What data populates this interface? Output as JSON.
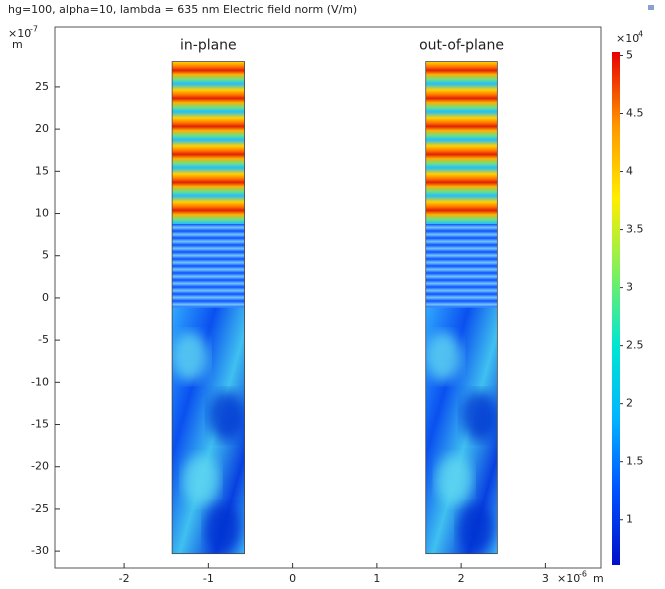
{
  "chart_data": {
    "type": "heatmap",
    "title": "hg=100, alpha=10, lambda = 635 nm Electric field norm (V/m)",
    "xlabel": "m",
    "xscale_base": "×10",
    "xscale_exp": "-6",
    "ylabel": "m",
    "yscale_base": "×10",
    "yscale_exp": "-7",
    "xlim": [
      -2.82,
      3.66
    ],
    "xticks": [
      -2,
      -1,
      0,
      1,
      2,
      3
    ],
    "ylim": [
      -32,
      32.1
    ],
    "yticks": [
      -30,
      -25,
      -20,
      -15,
      -10,
      -5,
      0,
      5,
      10,
      15,
      20,
      25
    ],
    "regions": [
      {
        "label": "in-plane",
        "x": [
          -1.43,
          -0.57
        ],
        "y": [
          -30.3,
          28
        ]
      },
      {
        "label": "out-of-plane",
        "x": [
          1.58,
          2.43
        ],
        "y": [
          -30.3,
          28
        ]
      }
    ],
    "colorbar": {
      "scale_base": "×10",
      "scale_exp": "4",
      "lim": [
        0.61,
        5.03
      ],
      "ticks": [
        1,
        1.5,
        2,
        2.5,
        3,
        3.5,
        4,
        4.5,
        5
      ],
      "colormap": [
        "#0010c8",
        "#0050ff",
        "#00b4ff",
        "#00e6d2",
        "#7ff05a",
        "#ffee00",
        "#ff9600",
        "#e60000"
      ]
    }
  }
}
